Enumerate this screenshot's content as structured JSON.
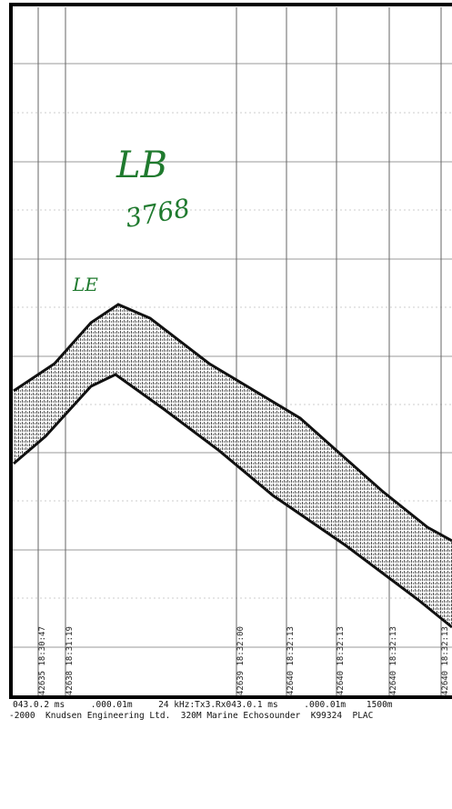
{
  "annotations": {
    "lb": "LB",
    "number": "3768",
    "le": "LE"
  },
  "time_marks": [
    "42635 18:30:47",
    "42638 18:31:19",
    "42639 18:32:00",
    "42640 18:32:13",
    "42640 18:32:13",
    "42640 18:32:13",
    "42640 18:32:13"
  ],
  "footer": {
    "line1": "043.0.2 ms     .000.01m     24 kHz:Tx3.Rx043.0.1 ms     .000.01m    1500m",
    "line2": "-2000  Knudsen Engineering Ltd.  320M Marine Echosounder  K99324  PLAC"
  }
}
